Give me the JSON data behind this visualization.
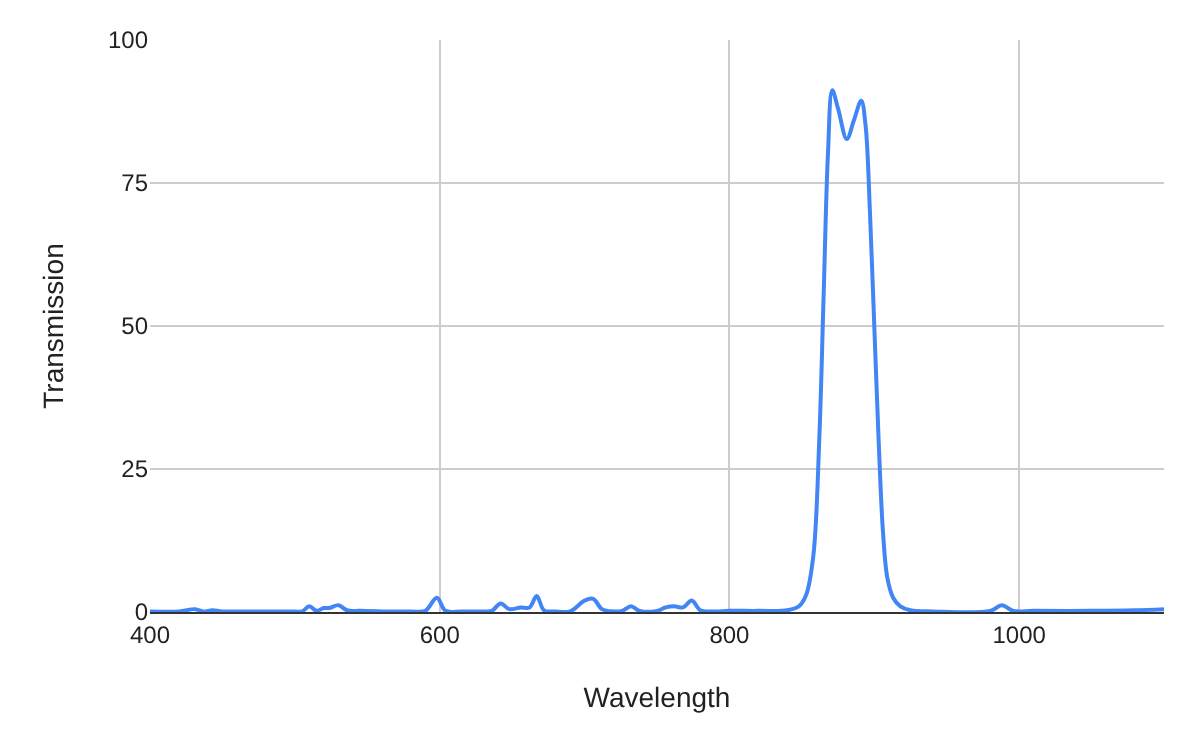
{
  "chart_data": {
    "type": "line",
    "xlabel": "Wavelength",
    "ylabel": "Transmission",
    "x": [
      400,
      420,
      431,
      437,
      443,
      450,
      470,
      500,
      505,
      510,
      515,
      520,
      524,
      530,
      536,
      545,
      560,
      580,
      590,
      598,
      604,
      615,
      630,
      636,
      642,
      648,
      656,
      662,
      667,
      672,
      680,
      690,
      700,
      706,
      712,
      720,
      726,
      732,
      738,
      750,
      756,
      762,
      768,
      774,
      780,
      790,
      800,
      820,
      840,
      848,
      853,
      858,
      862,
      865,
      868,
      871,
      875,
      881,
      886,
      891,
      894,
      897,
      900,
      903,
      906,
      909,
      913,
      918,
      925,
      940,
      980,
      988,
      996,
      1010,
      1050,
      1080,
      1100
    ],
    "series": [
      {
        "color": "#4285f4",
        "values": [
          0.1,
          0.1,
          0.5,
          0.1,
          0.3,
          0.1,
          0.1,
          0.1,
          0.1,
          1,
          0.2,
          0.7,
          0.7,
          1.2,
          0.3,
          0.2,
          0.1,
          0.1,
          0.2,
          2.5,
          0.2,
          0.1,
          0.1,
          0.2,
          1.5,
          0.5,
          0.8,
          0.8,
          2.8,
          0.3,
          0.1,
          0.1,
          2,
          2.3,
          0.5,
          0.1,
          0.2,
          1,
          0.2,
          0.2,
          0.8,
          1,
          0.8,
          2,
          0.3,
          0.1,
          0.2,
          0.2,
          0.3,
          1,
          3,
          10,
          30,
          55,
          80,
          91.2,
          88,
          82.7,
          86,
          89.4,
          85,
          70,
          50,
          30,
          14,
          6,
          2.5,
          1,
          0.3,
          0.1,
          0.2,
          1.2,
          0.2,
          0.2,
          0.2,
          0.3,
          0.5
        ]
      }
    ],
    "xlim": [
      400,
      1100
    ],
    "xticks": [
      400,
      600,
      800,
      1000
    ],
    "ylim": [
      0,
      100
    ],
    "yticks": [
      0,
      25,
      50,
      75,
      100
    ],
    "grid": true,
    "marker": "none",
    "line_style": "solid"
  }
}
